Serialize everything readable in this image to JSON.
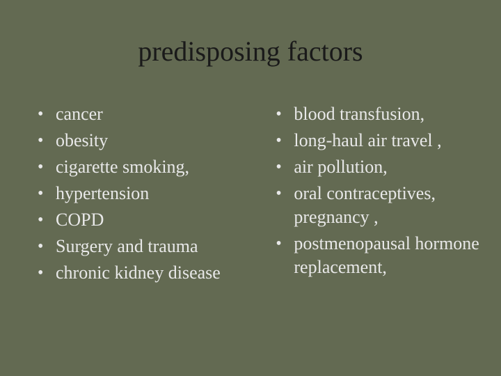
{
  "background_color": "#636a52",
  "text_color": "#e8e8e8",
  "title_color": "#1a1a1a",
  "font_family": "Times New Roman",
  "title": "predisposing factors",
  "title_fontsize": 40,
  "body_fontsize": 26,
  "left_column": {
    "items": [
      "cancer",
      "obesity",
      "cigarette smoking,",
      "hypertension",
      "COPD",
      "Surgery and trauma",
      "chronic kidney disease"
    ]
  },
  "right_column": {
    "items": [
      "blood transfusion,",
      "long-haul air travel ,",
      "air pollution,",
      " oral contraceptives, pregnancy ,",
      "postmenopausal hormone replacement,"
    ]
  },
  "bullet_char": "•"
}
